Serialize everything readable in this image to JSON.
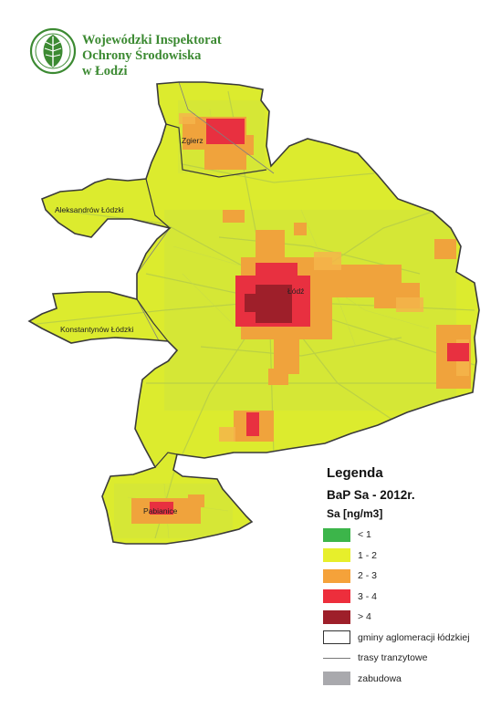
{
  "header": {
    "org_line1": "Wojewódzki Inspektorat",
    "org_line2": "Ochrony Środowiska",
    "org_line3": "w Łodzi",
    "logo_icon": "leaf-globe-logo",
    "logo_color": "#3c8a32"
  },
  "map": {
    "places": {
      "zgierz": "Zgierz",
      "aleksandrow": "Aleksandrów Łódzki",
      "konstantynow": "Konstantynów Łódzki",
      "lodz": "Łódź",
      "pabianice": "Pabianice"
    },
    "colors": {
      "lt1": "#3cb54a",
      "c1_2": "#d9ea2c",
      "c2_3": "#f5a23a",
      "c3_4": "#ed2e3c",
      "gt4": "#9e1f2a",
      "zabudowa": "#a9a9ad",
      "boundary": "#333333"
    }
  },
  "legend": {
    "title": "Legenda",
    "subtitle": "BaP Sa - 2012r.",
    "unit": "Sa [ng/m3]",
    "classes": [
      {
        "label": "< 1",
        "color": "#3cb54a"
      },
      {
        "label": "1 - 2",
        "color": "#e7ef2b"
      },
      {
        "label": "2 - 3",
        "color": "#f5a23a"
      },
      {
        "label": "3 - 4",
        "color": "#ed2e3c"
      },
      {
        "label": "> 4",
        "color": "#9e1f2a"
      }
    ],
    "boundary_label": "gminy aglomeracji łódzkiej",
    "roads_label": "trasy tranzytowe",
    "builtup_label": "zabudowa"
  }
}
